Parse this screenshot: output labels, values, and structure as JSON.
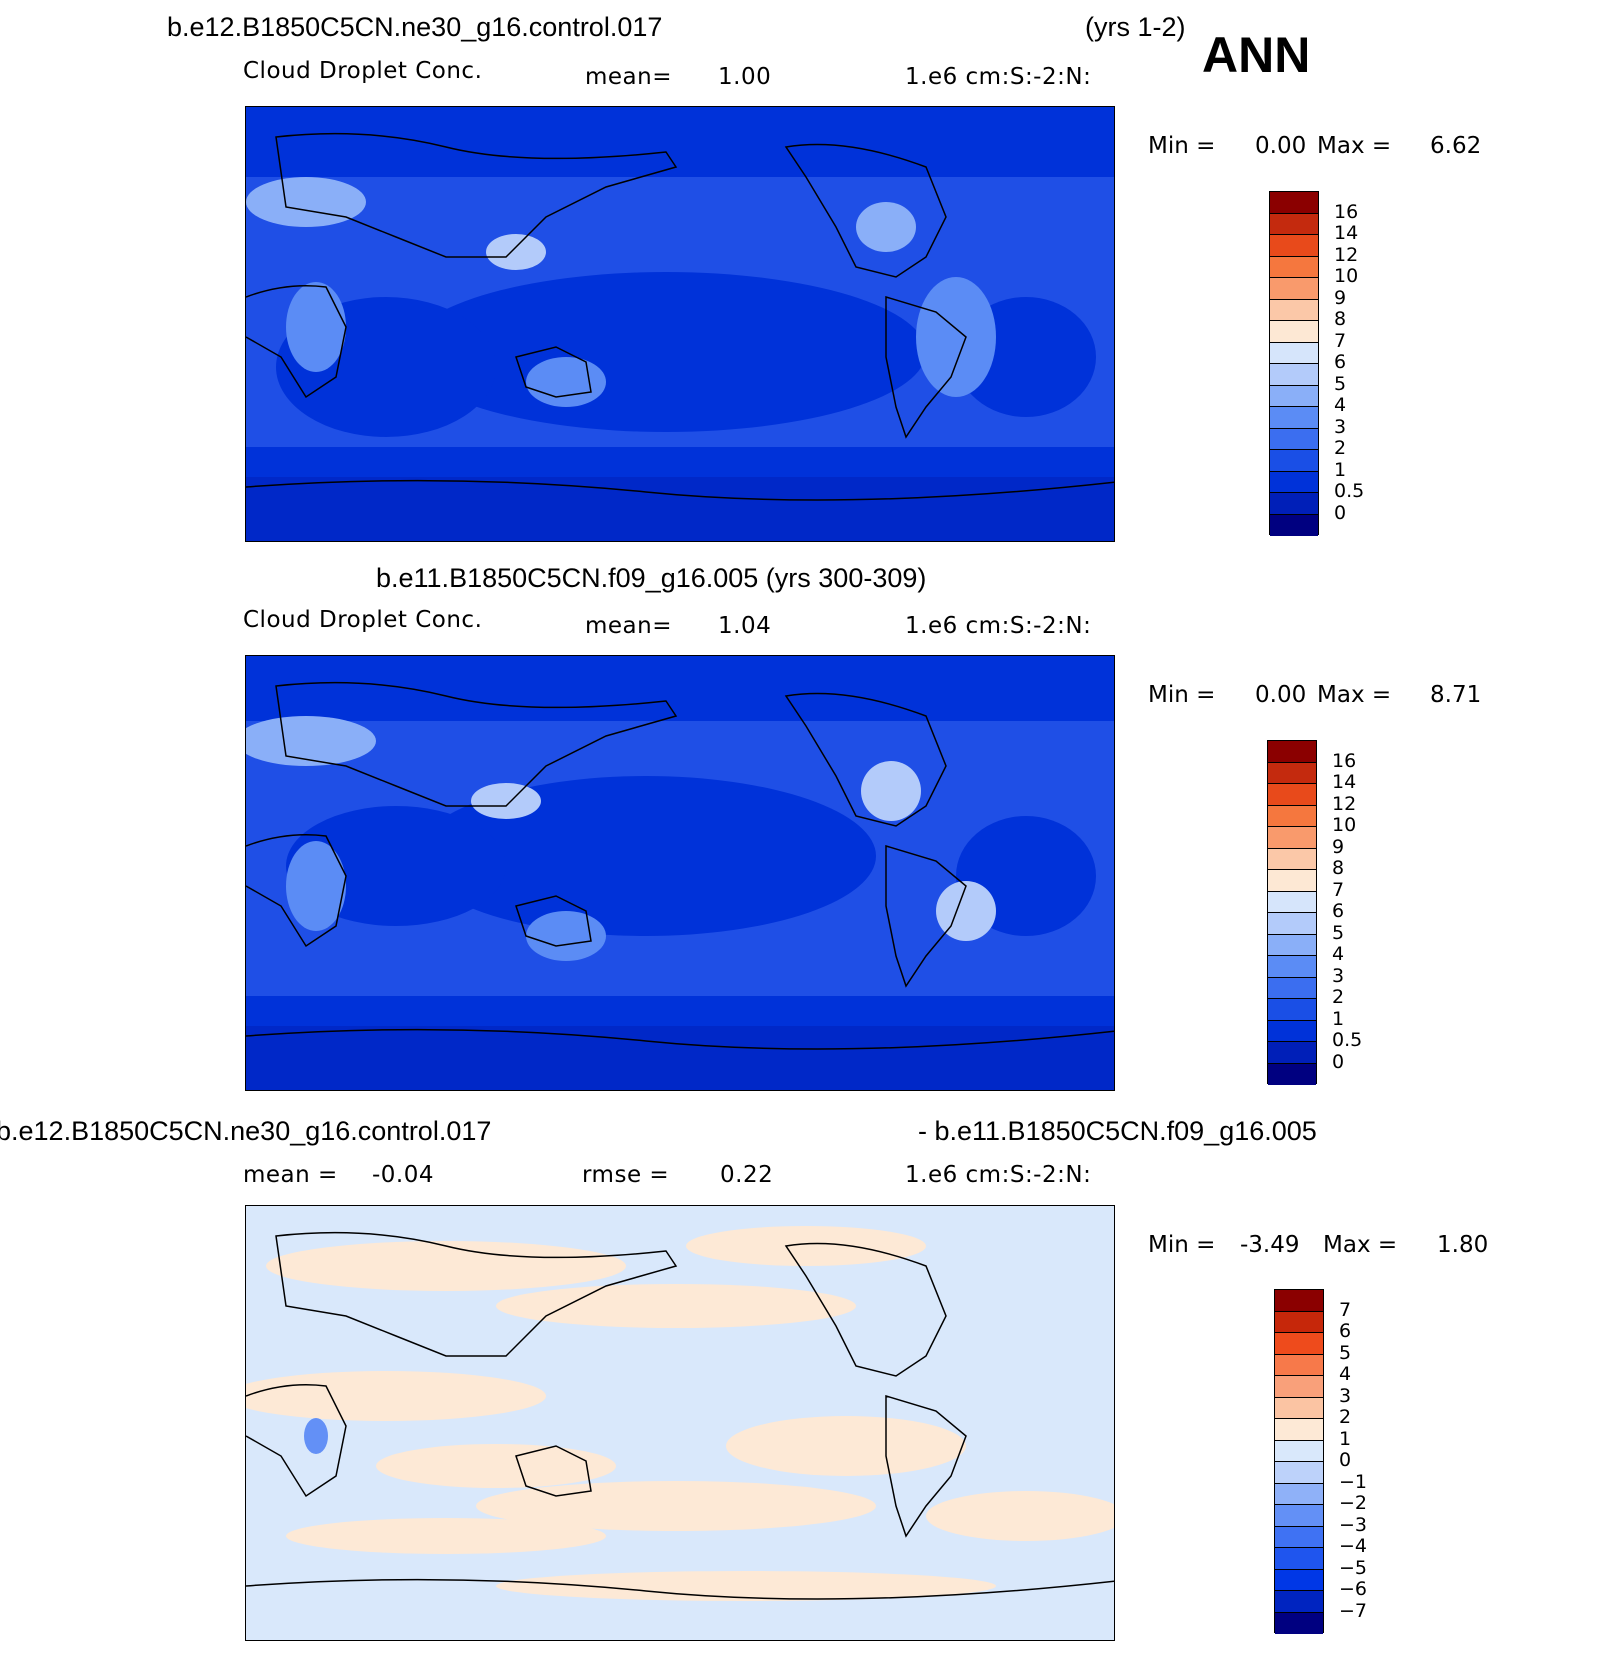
{
  "season": "ANN",
  "colors": {
    "abs_scale": [
      "#000080",
      "#001fb8",
      "#0032d9",
      "#1a4fe6",
      "#3b6ef0",
      "#5b8cf5",
      "#8aaff8",
      "#b3cbfa",
      "#d6e5fb",
      "#fde8d4",
      "#fbc8a8",
      "#f99a6c",
      "#f5773e",
      "#e84a1b",
      "#c42a0e",
      "#8b0000"
    ],
    "diff_scale": [
      "#000080",
      "#0024c0",
      "#0037e6",
      "#1f55ee",
      "#3f72f3",
      "#6390f6",
      "#8fb1f8",
      "#bdd2fa",
      "#d9e8fb",
      "#fde9d6",
      "#fbc4a3",
      "#f9a07a",
      "#f7794a",
      "#ee4b1c",
      "#c6270a",
      "#8b0000"
    ],
    "land_outline": "#000000"
  },
  "panels": [
    {
      "title_left": "b.e12.B1850C5CN.ne30_g16.control.017",
      "title_right": "(yrs 1-2)",
      "variable": "Cloud Droplet Conc.",
      "stat_label": "mean=",
      "stat_value": "1.00",
      "units": "1.e6 cm:S:-2:N:",
      "min_label": "Min =",
      "min_value": "0.00",
      "max_label": "Max =",
      "max_value": "6.62"
    },
    {
      "title": "b.e11.B1850C5CN.f09_g16.005 (yrs 300-309)",
      "variable": "Cloud Droplet Conc.",
      "stat_label": "mean=",
      "stat_value": "1.04",
      "units": "1.e6 cm:S:-2:N:",
      "min_label": "Min =",
      "min_value": "0.00",
      "max_label": "Max =",
      "max_value": "8.71"
    },
    {
      "title_left": "b.e12.B1850C5CN.ne30_g16.control.017",
      "title_right": "- b.e11.B1850C5CN.f09_g16.005",
      "mean_label": "mean =",
      "mean_value": "-0.04",
      "rmse_label": "rmse =",
      "rmse_value": "0.22",
      "units": "1.e6 cm:S:-2:N:",
      "min_label": "Min =",
      "min_value": "-3.49",
      "max_label": "Max =",
      "max_value": "1.80"
    }
  ],
  "chart_data": [
    {
      "type": "heatmap",
      "title": "b.e12.B1850C5CN.ne30_g16.control.017 (yrs 1-2)",
      "variable": "Cloud Droplet Conc.",
      "units": "1.e6 cm:S:-2:N:",
      "mean": 1.0,
      "min": 0.0,
      "max": 6.62,
      "colorbar_levels": [
        "16",
        "14",
        "12",
        "10",
        "9",
        "8",
        "7",
        "6",
        "5",
        "4",
        "3",
        "2",
        "1",
        "0.5",
        "0"
      ]
    },
    {
      "type": "heatmap",
      "title": "b.e11.B1850C5CN.f09_g16.005 (yrs 300-309)",
      "variable": "Cloud Droplet Conc.",
      "units": "1.e6 cm:S:-2:N:",
      "mean": 1.04,
      "min": 0.0,
      "max": 8.71,
      "colorbar_levels": [
        "16",
        "14",
        "12",
        "10",
        "9",
        "8",
        "7",
        "6",
        "5",
        "4",
        "3",
        "2",
        "1",
        "0.5",
        "0"
      ]
    },
    {
      "type": "heatmap",
      "title": "b.e12.B1850C5CN.ne30_g16.control.017 - b.e11.B1850C5CN.f09_g16.005",
      "units": "1.e6 cm:S:-2:N:",
      "mean": -0.04,
      "rmse": 0.22,
      "min": -3.49,
      "max": 1.8,
      "colorbar_levels": [
        "7",
        "6",
        "5",
        "4",
        "3",
        "2",
        "1",
        "0",
        "−1",
        "−2",
        "−3",
        "−4",
        "−5",
        "−6",
        "−7"
      ]
    }
  ]
}
